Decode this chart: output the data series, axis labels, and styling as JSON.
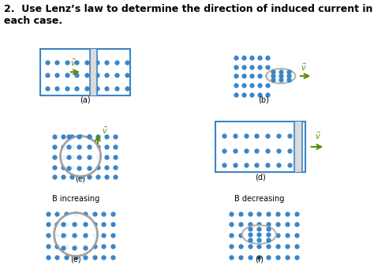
{
  "title": "2.  Use Lenz’s law to determine the direction of induced current in each case.",
  "title_fontsize": 9,
  "dot_color": "#3a85c8",
  "arrow_color": "#5a8a00",
  "rect_edge_color": "#3a85c8",
  "ellipse_edge_color": "#aaaaaa",
  "shade_color": "#d8d8d8",
  "background": "#ffffff",
  "labels": [
    "(a)",
    "(b)",
    "(c)",
    "(d)",
    "(e)",
    "(f)"
  ],
  "label_b_increasing": "B increasing",
  "label_b_decreasing": "B decreasing",
  "label_fontsize": 7,
  "b_label_fontsize": 7
}
